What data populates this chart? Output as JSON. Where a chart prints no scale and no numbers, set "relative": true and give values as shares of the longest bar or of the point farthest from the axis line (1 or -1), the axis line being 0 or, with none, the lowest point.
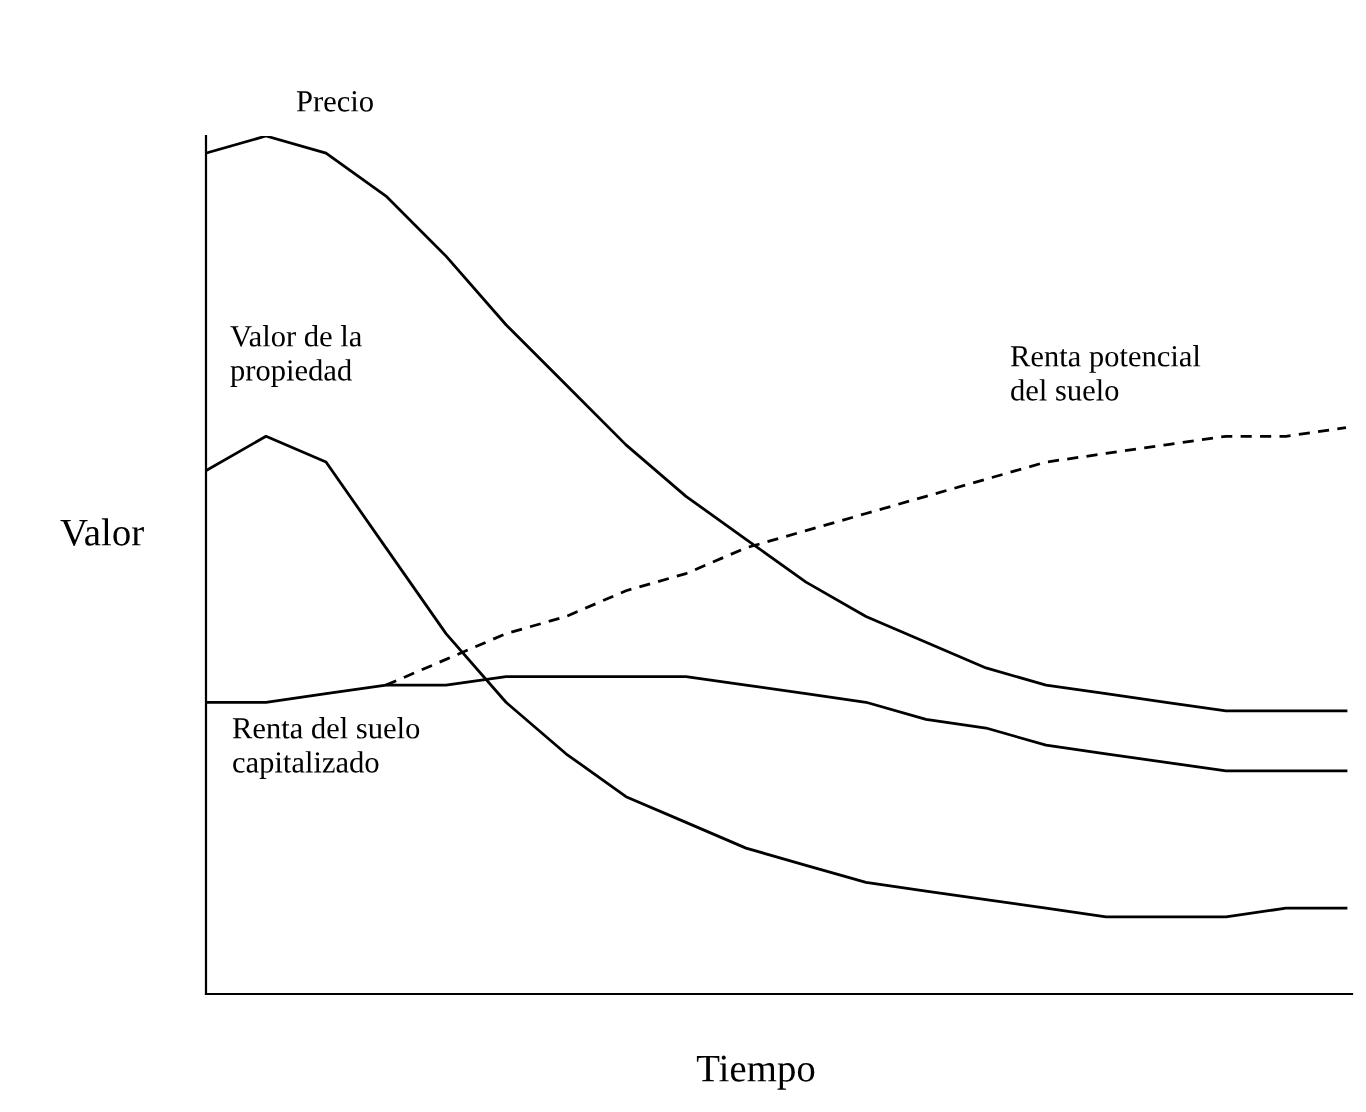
{
  "chart_data": {
    "type": "line",
    "relative": true,
    "xlabel": "Tiempo",
    "ylabel": "Valor",
    "legend": false,
    "marker": "none",
    "categories": [
      null,
      null,
      null,
      null,
      null,
      null,
      null,
      null,
      null,
      null,
      null,
      null,
      null,
      null,
      null,
      null,
      null,
      null,
      null,
      null
    ],
    "series": [
      {
        "name": "Precio",
        "color": "#000000",
        "line_style": "solid",
        "values": [
          0.98,
          1.0,
          0.98,
          0.93,
          0.86,
          0.78,
          0.71,
          0.64,
          0.58,
          0.53,
          0.48,
          0.44,
          0.41,
          0.38,
          0.36,
          0.35,
          0.34,
          0.33,
          0.33,
          0.33
        ]
      },
      {
        "name": "Valor de la\npropiedad",
        "color": "#000000",
        "line_style": "solid",
        "values": [
          0.61,
          0.65,
          0.62,
          0.52,
          0.42,
          0.34,
          0.28,
          0.23,
          0.2,
          0.17,
          0.15,
          0.13,
          0.12,
          0.11,
          0.1,
          0.09,
          0.09,
          0.09,
          0.1,
          0.1
        ]
      },
      {
        "name": "Renta potencial\ndel suelo",
        "color": "#000000",
        "line_style": "dashed",
        "values": [
          null,
          null,
          null,
          0.36,
          0.39,
          0.42,
          0.44,
          0.47,
          0.49,
          0.52,
          0.54,
          0.56,
          0.58,
          0.6,
          0.62,
          0.63,
          0.64,
          0.65,
          0.65,
          0.66
        ]
      },
      {
        "name": "Renta del suelo\ncapitalizado",
        "color": "#000000",
        "line_style": "solid",
        "values": [
          0.34,
          0.34,
          0.35,
          0.36,
          0.36,
          0.37,
          0.37,
          0.37,
          0.37,
          0.36,
          0.35,
          0.34,
          0.32,
          0.31,
          0.29,
          0.28,
          0.27,
          0.26,
          0.26,
          0.26
        ]
      }
    ]
  }
}
